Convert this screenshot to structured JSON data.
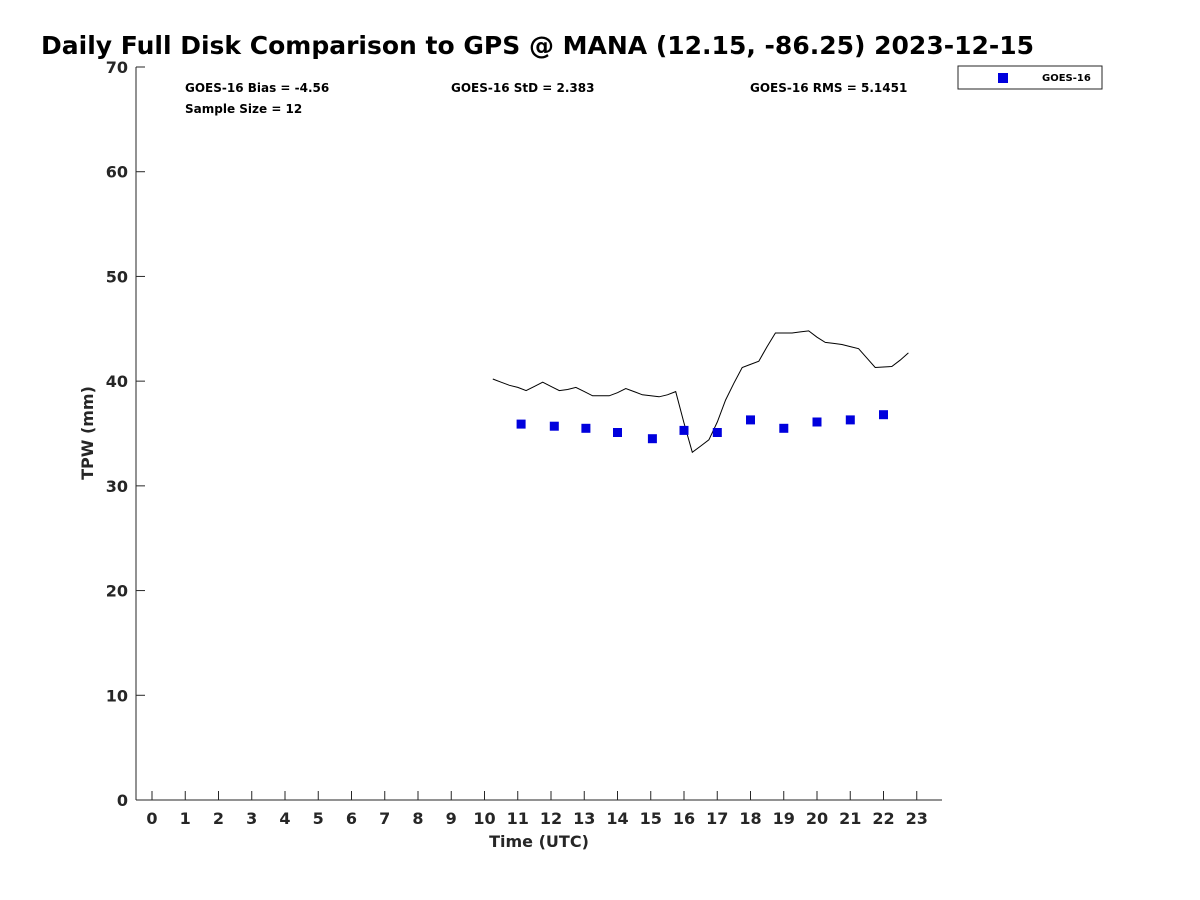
{
  "chart_data": {
    "type": "scatter",
    "title": "Daily Full Disk Comparison to GPS @ MANA (12.15, -86.25) 2023-12-15",
    "xlabel": "Time (UTC)",
    "ylabel": "TPW (mm)",
    "xlim": [
      -0.5,
      23.75
    ],
    "ylim": [
      0,
      70
    ],
    "x_ticks": [
      0,
      1,
      2,
      3,
      4,
      5,
      6,
      7,
      8,
      9,
      10,
      11,
      12,
      13,
      14,
      15,
      16,
      17,
      18,
      19,
      20,
      21,
      22,
      23
    ],
    "y_ticks": [
      0,
      10,
      20,
      30,
      40,
      50,
      60,
      70
    ],
    "grid": false,
    "legend_position": "top-right, outside plot",
    "stats": {
      "bias": "GOES-16 Bias = -4.56",
      "sample_size": "Sample Size = 12",
      "std": "GOES-16 StD = 2.383",
      "rms": "GOES-16 RMS = 5.1451"
    },
    "series": [
      {
        "kind": "line",
        "color": "#000000",
        "x": [
          10.25,
          10.5,
          10.75,
          11.0,
          11.25,
          11.5,
          11.75,
          12.0,
          12.25,
          12.5,
          12.75,
          13.0,
          13.25,
          13.5,
          13.75,
          14.0,
          14.25,
          14.5,
          14.75,
          15.0,
          15.25,
          15.5,
          15.75,
          16.0,
          16.25,
          16.5,
          16.75,
          17.0,
          17.25,
          17.5,
          17.75,
          18.0,
          18.25,
          18.5,
          18.75,
          19.0,
          19.25,
          19.5,
          19.75,
          20.0,
          20.25,
          20.5,
          20.75,
          21.0,
          21.25,
          21.5,
          21.75,
          22.0,
          22.25,
          22.5,
          22.75
        ],
        "y": [
          40.2,
          39.9,
          39.6,
          39.4,
          39.1,
          39.5,
          39.9,
          39.5,
          39.1,
          39.2,
          39.4,
          39.0,
          38.6,
          38.6,
          38.6,
          38.9,
          39.3,
          39.0,
          38.7,
          38.6,
          38.5,
          38.7,
          39.0,
          36.0,
          33.2,
          33.8,
          34.4,
          36.1,
          38.2,
          39.8,
          41.3,
          41.6,
          41.9,
          43.3,
          44.6,
          44.6,
          44.6,
          44.7,
          44.8,
          44.2,
          43.7,
          43.6,
          43.5,
          43.3,
          43.1,
          42.2,
          41.3,
          41.35,
          41.4,
          42.0,
          42.7
        ]
      },
      {
        "name": "GOES-16",
        "kind": "marker",
        "color": "#0000dd",
        "marker": "square",
        "x": [
          11.1,
          12.1,
          13.05,
          14.0,
          15.05,
          16.0,
          17.0,
          18.0,
          19.0,
          20.0,
          21.0,
          22.0
        ],
        "y": [
          35.9,
          35.7,
          35.5,
          35.1,
          34.5,
          35.3,
          35.1,
          36.3,
          35.5,
          36.1,
          36.3,
          36.8
        ]
      }
    ]
  }
}
